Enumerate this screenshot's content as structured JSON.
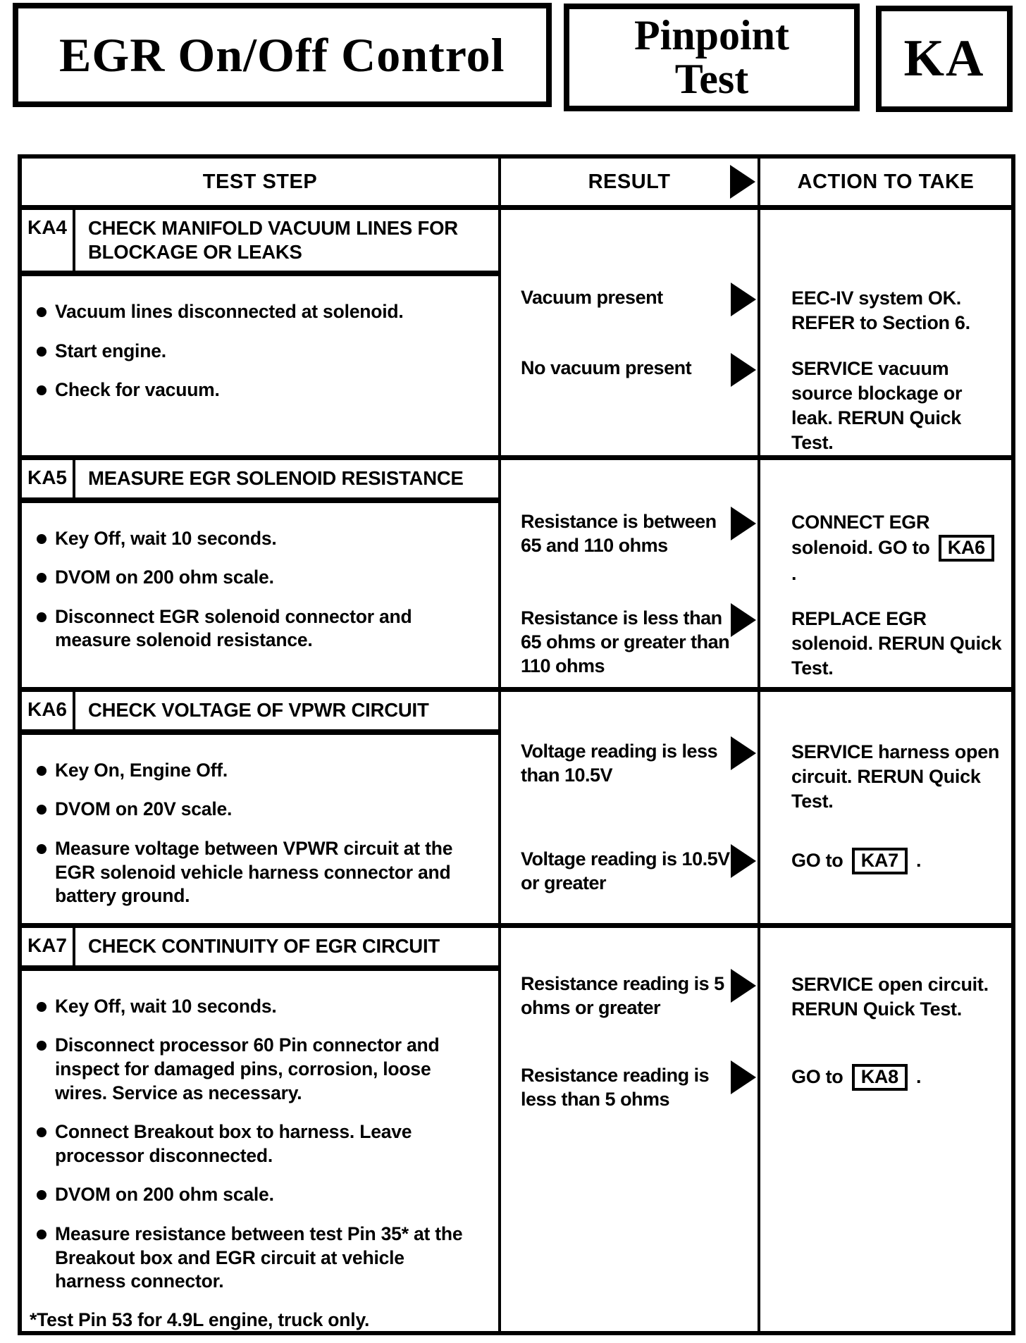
{
  "colors": {
    "ink": "#000000",
    "paper": "#ffffff"
  },
  "header": {
    "system_title": "EGR On/Off Control",
    "doc_type_line1": "Pinpoint",
    "doc_type_line2": "Test",
    "test_code": "KA"
  },
  "table": {
    "columns": {
      "test_step": "TEST STEP",
      "result": "RESULT",
      "action": "ACTION TO TAKE"
    },
    "result_arrow_icon": "filled-right-triangle",
    "sections": [
      {
        "code": "KA4",
        "title": "CHECK MANIFOLD VACUUM LINES FOR BLOCKAGE OR LEAKS",
        "steps": [
          "Vacuum lines disconnected at solenoid.",
          "Start engine.",
          "Check for vacuum."
        ],
        "footnote": "",
        "outcomes": [
          {
            "result": "Vacuum present",
            "action": [
              {
                "t": "EEC-IV system OK. REFER to Section 6."
              }
            ]
          },
          {
            "result": "No vacuum present",
            "action": [
              {
                "t": "SERVICE vacuum source blockage or leak. RERUN Quick Test."
              }
            ]
          }
        ]
      },
      {
        "code": "KA5",
        "title": "MEASURE EGR SOLENOID RESISTANCE",
        "steps": [
          "Key Off, wait 10 seconds.",
          "DVOM on 200 ohm scale.",
          "Disconnect EGR solenoid connector and measure solenoid resistance."
        ],
        "footnote": "",
        "outcomes": [
          {
            "result": "Resistance is between 65 and 110 ohms",
            "action": [
              {
                "t": "CONNECT EGR solenoid. GO to "
              },
              {
                "box": "KA6"
              },
              {
                "t": " ."
              }
            ]
          },
          {
            "result": "Resistance is less than 65 ohms or greater than 110 ohms",
            "action": [
              {
                "t": "REPLACE EGR solenoid. RERUN Quick Test."
              }
            ]
          }
        ]
      },
      {
        "code": "KA6",
        "title": "CHECK VOLTAGE OF VPWR CIRCUIT",
        "steps": [
          "Key On, Engine Off.",
          "DVOM on 20V scale.",
          "Measure voltage between VPWR circuit at the EGR solenoid vehicle harness connector and battery ground."
        ],
        "footnote": "",
        "outcomes": [
          {
            "result": "Voltage reading is less than 10.5V",
            "action": [
              {
                "t": "SERVICE harness open circuit. RERUN Quick Test."
              }
            ]
          },
          {
            "result": "Voltage reading is 10.5V or greater",
            "action": [
              {
                "t": "GO to "
              },
              {
                "box": "KA7"
              },
              {
                "t": " ."
              }
            ]
          }
        ]
      },
      {
        "code": "KA7",
        "title": "CHECK CONTINUITY OF EGR CIRCUIT",
        "steps": [
          "Key Off, wait 10 seconds.",
          "Disconnect processor 60 Pin connector and inspect for damaged pins, corrosion, loose wires. Service as necessary.",
          "Connect Breakout box to harness. Leave processor disconnected.",
          "DVOM on 200 ohm scale.",
          "Measure resistance between test Pin 35* at the Breakout box and EGR circuit at vehicle harness connector."
        ],
        "footnote": "*Test Pin 53 for 4.9L engine, truck only.",
        "outcomes": [
          {
            "result": "Resistance reading is 5 ohms or greater",
            "action": [
              {
                "t": "SERVICE open circuit. RERUN Quick Test."
              }
            ]
          },
          {
            "result": "Resistance reading is less than 5 ohms",
            "action": [
              {
                "t": "GO to "
              },
              {
                "box": "KA8"
              },
              {
                "t": " ."
              }
            ]
          }
        ]
      }
    ]
  }
}
